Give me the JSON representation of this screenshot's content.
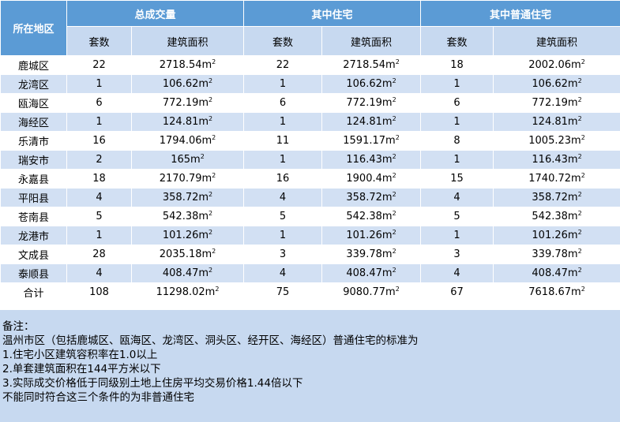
{
  "table": {
    "region_header": "所在地区",
    "groups": [
      "总成交量",
      "其中住宅",
      "其中普通住宅"
    ],
    "sub_headers": [
      "套数",
      "建筑面积",
      "套数",
      "建筑面积",
      "套数",
      "建筑面积"
    ],
    "unit": "m²",
    "rows": [
      {
        "region": "鹿城区",
        "cells": [
          "22",
          "2718.54",
          "22",
          "2718.54",
          "18",
          "2002.06"
        ]
      },
      {
        "region": "龙湾区",
        "cells": [
          "1",
          "106.62",
          "1",
          "106.62",
          "1",
          "106.62"
        ]
      },
      {
        "region": "瓯海区",
        "cells": [
          "6",
          "772.19",
          "6",
          "772.19",
          "6",
          "772.19"
        ]
      },
      {
        "region": "海经区",
        "cells": [
          "1",
          "124.81",
          "1",
          "124.81",
          "1",
          "124.81"
        ]
      },
      {
        "region": "乐清市",
        "cells": [
          "16",
          "1794.06",
          "11",
          "1591.17",
          "8",
          "1005.23"
        ]
      },
      {
        "region": "瑞安市",
        "cells": [
          "2",
          "165",
          "1",
          "116.43",
          "1",
          "116.43"
        ]
      },
      {
        "region": "永嘉县",
        "cells": [
          "18",
          "2170.79",
          "16",
          "1900.4",
          "15",
          "1740.72"
        ]
      },
      {
        "region": "平阳县",
        "cells": [
          "4",
          "358.72",
          "4",
          "358.72",
          "4",
          "358.72"
        ]
      },
      {
        "region": "苍南县",
        "cells": [
          "5",
          "542.38",
          "5",
          "542.38",
          "5",
          "542.38"
        ]
      },
      {
        "region": "龙港市",
        "cells": [
          "1",
          "101.26",
          "1",
          "101.26",
          "1",
          "101.26"
        ]
      },
      {
        "region": "文成县",
        "cells": [
          "28",
          "2035.18",
          "3",
          "339.78",
          "3",
          "339.78"
        ]
      },
      {
        "region": "泰顺县",
        "cells": [
          "4",
          "408.47",
          "4",
          "408.47",
          "4",
          "408.47"
        ]
      },
      {
        "region": "合计",
        "cells": [
          "108",
          "11298.02",
          "75",
          "9080.77",
          "67",
          "7618.67"
        ]
      }
    ]
  },
  "notes": {
    "lines": [
      "备注：",
      "温州市区（包括鹿城区、瓯海区、龙湾区、洞头区、经开区、海经区）普通住宅的标准为",
      "1.住宅小区建筑容积率在1.0以上",
      "2.单套建筑面积在144平方米以下",
      "3.实际成交价格低于同级别土地上住房平均交易价格1.44倍以下",
      "不能同时符合这三个条件的为非普通住宅"
    ]
  },
  "colors": {
    "header": "#5b9bd5",
    "subheader": "#c7d9f0",
    "stripe": "#d2e0f3",
    "notes_bg": "#c7d9f0"
  }
}
